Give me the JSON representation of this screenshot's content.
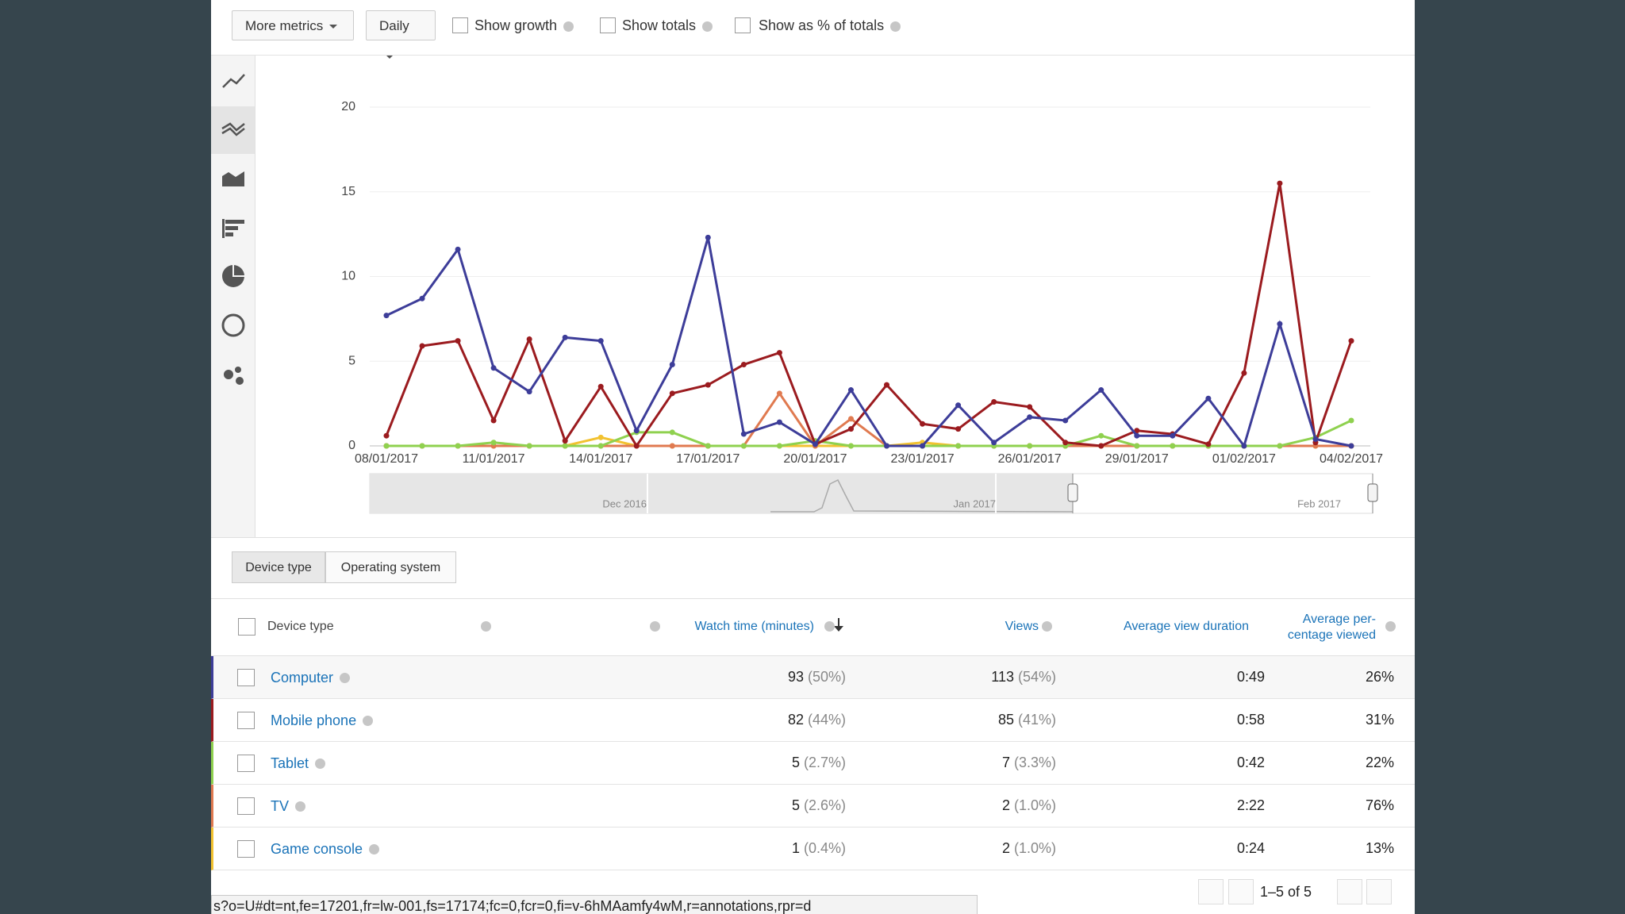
{
  "toolbar": {
    "more_metrics": "More metrics",
    "interval": "Daily",
    "show_growth": "Show growth",
    "show_totals": "Show totals",
    "show_pct": "Show as % of totals"
  },
  "chart_data": {
    "type": "line",
    "categories": [
      "08/01/2017",
      null,
      null,
      "11/01/2017",
      null,
      null,
      "14/01/2017",
      null,
      null,
      "17/01/2017",
      null,
      null,
      "20/01/2017",
      null,
      null,
      "23/01/2017",
      null,
      null,
      "26/01/2017",
      null,
      null,
      "29/01/2017",
      null,
      null,
      "01/02/2017",
      null,
      null,
      "04/02/2017"
    ],
    "series": [
      {
        "name": "Computer",
        "color": "#3d3d99",
        "values": [
          7.7,
          8.7,
          11.6,
          4.6,
          3.2,
          6.4,
          6.2,
          0.9,
          4.8,
          12.3,
          0.7,
          1.4,
          0.1,
          3.3,
          0,
          0,
          2.4,
          0.2,
          1.7,
          1.5,
          3.3,
          0.6,
          0.6,
          2.8,
          0,
          7.2,
          0.4,
          0
        ]
      },
      {
        "name": "Mobile phone",
        "color": "#9b1b1f",
        "values": [
          0.6,
          5.9,
          6.2,
          1.5,
          6.3,
          0.3,
          3.5,
          0,
          3.1,
          3.6,
          4.8,
          5.5,
          0.1,
          1.0,
          3.6,
          1.3,
          1.0,
          2.6,
          2.3,
          0.2,
          0,
          0.9,
          0.7,
          0.1,
          4.3,
          15.5,
          0.2,
          6.2
        ]
      },
      {
        "name": "Tablet",
        "color": "#8fd14f",
        "values": [
          0,
          0,
          0,
          0.2,
          0,
          0,
          0,
          0.8,
          0.8,
          0,
          0,
          0,
          0.3,
          0,
          0,
          0,
          0,
          0,
          0,
          0,
          0.6,
          0,
          0,
          0,
          0,
          0,
          0.5,
          1.5
        ]
      },
      {
        "name": "TV",
        "color": "#e07a50",
        "values": [
          0,
          0,
          0,
          0,
          0,
          0,
          0,
          0,
          0,
          0,
          0,
          3.1,
          0,
          1.6,
          0,
          0,
          0,
          0,
          0,
          0,
          0,
          0,
          0,
          0,
          0,
          0,
          0,
          0
        ]
      },
      {
        "name": "Game console",
        "color": "#f2c230",
        "values": [
          0,
          0,
          0,
          0,
          0,
          0,
          0.5,
          0,
          0,
          0,
          0,
          0,
          0,
          0,
          0,
          0.2,
          0,
          0,
          0,
          0,
          0,
          0,
          0,
          0,
          0,
          0,
          0,
          0
        ]
      }
    ],
    "ylim": [
      0,
      20
    ],
    "yticks": [
      0,
      5,
      10,
      15,
      20
    ],
    "grid": true,
    "navigator_labels": [
      "Dec 2016",
      "Jan 2017",
      "Feb 2017"
    ]
  },
  "tabs": [
    "Device type",
    "Operating system"
  ],
  "table": {
    "headers": {
      "device": "Device type",
      "watch": "Watch time (minutes)",
      "views": "Views",
      "duration": "Average view duration",
      "pct": [
        "Average per-",
        "centage viewed"
      ]
    },
    "rows": [
      {
        "name": "Computer",
        "watch": "93",
        "watch_share": "(50%)",
        "views": "113",
        "views_share": "(54%)",
        "duration": "0:49",
        "pct": "26%"
      },
      {
        "name": "Mobile phone",
        "watch": "82",
        "watch_share": "(44%)",
        "views": "85",
        "views_share": "(41%)",
        "duration": "0:58",
        "pct": "31%"
      },
      {
        "name": "Tablet",
        "watch": "5",
        "watch_share": "(2.7%)",
        "views": "7",
        "views_share": "(3.3%)",
        "duration": "0:42",
        "pct": "22%"
      },
      {
        "name": "TV",
        "watch": "5",
        "watch_share": "(2.6%)",
        "views": "2",
        "views_share": "(1.0%)",
        "duration": "2:22",
        "pct": "76%"
      },
      {
        "name": "Game console",
        "watch": "1",
        "watch_share": "(0.4%)",
        "views": "2",
        "views_share": "(1.0%)",
        "duration": "0:24",
        "pct": "13%"
      }
    ]
  },
  "pagination": "1–5 of 5",
  "status_url": "s?o=U#dt=nt,fe=17201,fr=lw-001,fs=17174;fc=0,fcr=0,fi=v-6hMAamfy4wM,r=annotations,rpr=d"
}
